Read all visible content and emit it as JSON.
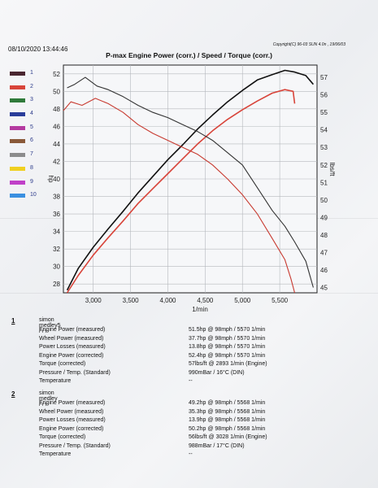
{
  "header": {
    "datetime": "08/10/2020 13:44:46",
    "copyright": "Copyright(C) 96-03 SUN 4.0n , 19/06/03",
    "title": "P-max Engine Power (corr.) / Speed / Torque (corr.)"
  },
  "legend": [
    {
      "num": "1",
      "color": "#4a2630"
    },
    {
      "num": "2",
      "color": "#d8443a"
    },
    {
      "num": "3",
      "color": "#2f7a3a"
    },
    {
      "num": "4",
      "color": "#2a3d9a"
    },
    {
      "num": "5",
      "color": "#b43aa0"
    },
    {
      "num": "6",
      "color": "#8a5a3a"
    },
    {
      "num": "7",
      "color": "#8c8c8c"
    },
    {
      "num": "8",
      "color": "#f0d020"
    },
    {
      "num": "9",
      "color": "#c040c8"
    },
    {
      "num": "10",
      "color": "#3a90e0"
    }
  ],
  "chart_data": {
    "type": "line",
    "title": "P-max Engine Power (corr.) / Speed / Torque (corr.)",
    "xlabel": "1/min",
    "ylabel_left": "hp",
    "ylabel_right": "lbs/ft",
    "xlim": [
      2600,
      6000
    ],
    "ylim_left": [
      27,
      53
    ],
    "ylim_right": [
      44.7,
      57.7
    ],
    "x_ticks": [
      "3,000",
      "3,500",
      "4,000",
      "4,500",
      "5,000",
      "5,500"
    ],
    "y_ticks_left": [
      "52",
      "50",
      "48",
      "46",
      "44",
      "42",
      "40",
      "38",
      "36",
      "34",
      "32",
      "30",
      "28"
    ],
    "y_ticks_right": [
      "57",
      "56",
      "55",
      "54",
      "53",
      "52",
      "51",
      "50",
      "49",
      "48",
      "47",
      "46",
      "45"
    ],
    "grid": true,
    "series": [
      {
        "name": "1",
        "kind": "power",
        "color": "#111111",
        "x": [
          2650,
          2800,
          3000,
          3200,
          3400,
          3600,
          3800,
          4000,
          4200,
          4400,
          4600,
          4800,
          5000,
          5200,
          5400,
          5570,
          5700,
          5850,
          5950
        ],
        "y": [
          27.3,
          29.8,
          32.2,
          34.3,
          36.3,
          38.4,
          40.3,
          42.2,
          43.9,
          45.7,
          47.3,
          48.8,
          50.1,
          51.3,
          51.9,
          52.4,
          52.2,
          51.8,
          50.8
        ]
      },
      {
        "name": "2",
        "kind": "power",
        "color": "#d8443a",
        "x": [
          2650,
          2800,
          3000,
          3200,
          3400,
          3600,
          3800,
          4000,
          4200,
          4400,
          4600,
          4800,
          5000,
          5200,
          5400,
          5568,
          5680,
          5700
        ],
        "y": [
          27.0,
          29.0,
          31.3,
          33.3,
          35.2,
          37.2,
          38.9,
          40.6,
          42.3,
          44.0,
          45.5,
          46.8,
          47.9,
          48.9,
          49.8,
          50.2,
          50.0,
          48.6
        ]
      },
      {
        "name": "1",
        "kind": "torque",
        "color": "#333333",
        "x": [
          2650,
          2750,
          2893,
          3050,
          3200,
          3400,
          3600,
          3800,
          4000,
          4200,
          4400,
          4600,
          4800,
          5000,
          5200,
          5400,
          5570,
          5700,
          5850,
          5950
        ],
        "y": [
          56.4,
          56.6,
          57.0,
          56.5,
          56.3,
          55.9,
          55.4,
          55.0,
          54.7,
          54.3,
          53.9,
          53.4,
          52.7,
          52.0,
          50.7,
          49.4,
          48.5,
          47.6,
          46.5,
          45.0
        ]
      },
      {
        "name": "2",
        "kind": "torque",
        "color": "#c83a30",
        "x": [
          2600,
          2700,
          2850,
          3028,
          3200,
          3400,
          3600,
          3800,
          4000,
          4200,
          4400,
          4600,
          4800,
          5000,
          5200,
          5400,
          5568,
          5650,
          5700
        ],
        "y": [
          55.1,
          55.6,
          55.4,
          55.8,
          55.5,
          55.0,
          54.3,
          53.8,
          53.4,
          53.0,
          52.6,
          52.0,
          51.2,
          50.3,
          49.2,
          47.8,
          46.6,
          45.5,
          44.7
        ]
      }
    ]
  },
  "results": [
    {
      "num": "1",
      "name": "simon medley5 / / /",
      "rows": [
        {
          "label": "Engine Power (measured)",
          "value": "51.5hp @ 98mph / 5570 1/min"
        },
        {
          "label": "Wheel Power (measured)",
          "value": "37.7hp @ 98mph / 5570 1/min"
        },
        {
          "label": "Power Losses (measured)",
          "value": "13.8hp @ 98mph / 5570 1/min"
        },
        {
          "label": "Engine Power (corrected)",
          "value": "52.4hp @ 98mph / 5570 1/min"
        },
        {
          "label": "Torque (corrected)",
          "value": "57lbs/ft @ 2893 1/min (Engine)"
        },
        {
          "label": "Pressure / Temp. (Standard)",
          "value": "990mBar / 16°C (DIN)"
        },
        {
          "label": "Temperature",
          "value": "--"
        }
      ]
    },
    {
      "num": "2",
      "name": "simon medley / / /",
      "rows": [
        {
          "label": "Engine Power (measured)",
          "value": "49.2hp @ 98mph / 5568 1/min"
        },
        {
          "label": "Wheel Power (measured)",
          "value": "35.3hp @ 98mph / 5568 1/min"
        },
        {
          "label": "Power Losses (measured)",
          "value": "13.9hp @ 98mph / 5568 1/min"
        },
        {
          "label": "Engine Power (corrected)",
          "value": "50.2hp @ 98mph / 5568 1/min"
        },
        {
          "label": "Torque (corrected)",
          "value": "56lbs/ft @ 3028 1/min (Engine)"
        },
        {
          "label": "Pressure / Temp. (Standard)",
          "value": "988mBar / 17°C (DIN)"
        },
        {
          "label": "Temperature",
          "value": "--"
        }
      ]
    }
  ]
}
